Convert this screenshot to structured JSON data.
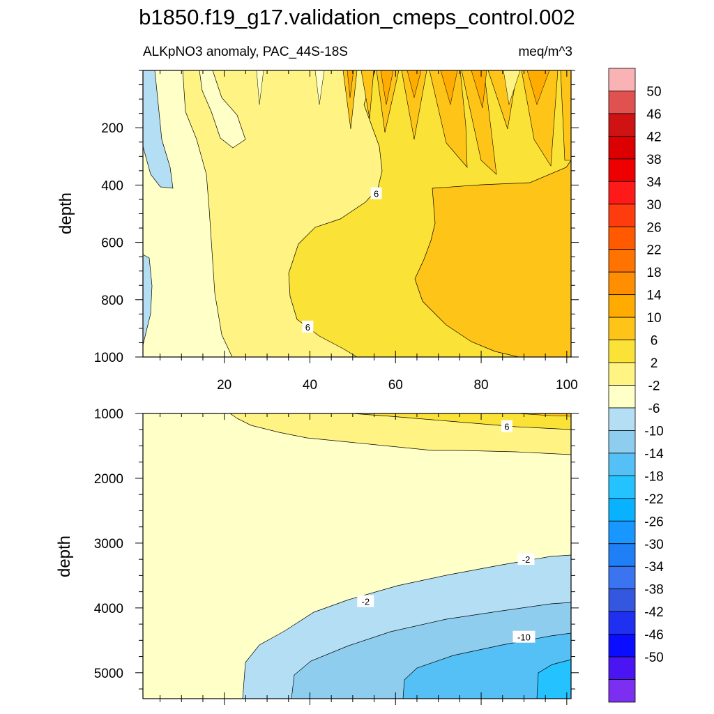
{
  "title": "b1850.f19_g17.validation_cmeps_control.002",
  "subtitle_left": "ALKpNO3 anomaly, PAC_44S-18S",
  "subtitle_right": "meq/m^3",
  "chart_data": [
    {
      "type": "heatmap",
      "name": "upper-panel",
      "ylabel": "depth",
      "xlim": [
        1,
        101
      ],
      "ylim": [
        1000,
        0
      ],
      "x_ticks": [
        "20",
        "40",
        "60",
        "80",
        "100"
      ],
      "y_ticks": [
        "200",
        "400",
        "600",
        "800",
        "1000"
      ],
      "contour_labels": [
        {
          "text": "6",
          "x": 55.5,
          "y": 430
        },
        {
          "text": "6",
          "x": 39.5,
          "y": 895
        }
      ]
    },
    {
      "type": "heatmap",
      "name": "lower-panel",
      "ylabel": "depth",
      "xlim": [
        1,
        101
      ],
      "ylim": [
        5400,
        1000
      ],
      "x_ticks": [],
      "y_ticks": [
        "1000",
        "2000",
        "3000",
        "4000",
        "5000"
      ],
      "contour_labels": [
        {
          "text": "6",
          "x": 86,
          "y": 1200
        },
        {
          "text": "-2",
          "x": 90.5,
          "y": 3250
        },
        {
          "text": "-2",
          "x": 53,
          "y": 3900
        },
        {
          "text": "-10",
          "x": 90,
          "y": 4450
        }
      ]
    }
  ],
  "colorbar": {
    "labels": [
      "50",
      "46",
      "42",
      "38",
      "34",
      "30",
      "26",
      "22",
      "18",
      "14",
      "10",
      "6",
      "2",
      "-2",
      "-6",
      "-10",
      "-14",
      "-18",
      "-22",
      "-26",
      "-30",
      "-34",
      "-38",
      "-42",
      "-46",
      "-50"
    ],
    "colors": [
      "#f9b3b4",
      "#e0524f",
      "#cf1212",
      "#dc0000",
      "#ee0000",
      "#ff1a1a",
      "#fe3c0d",
      "#ff5a00",
      "#ff7300",
      "#ff8f00",
      "#ffab00",
      "#ffc418",
      "#fbe236",
      "#fef383",
      "#ffffc8",
      "#b3def3",
      "#8ecdee",
      "#54c0f5",
      "#24c3ff",
      "#08b2ff",
      "#1797ff",
      "#1f7ff6",
      "#3b74f0",
      "#3457e0",
      "#1f30f0",
      "#0a0dff",
      "#4b14f2",
      "#7c2ff0"
    ]
  },
  "colors": {
    "c_lt_neg2": "#b3def3",
    "c_lt_neg6": "#8ecdee",
    "c_lt_neg10": "#54c0f5",
    "c_lt_neg14": "#24c3ff",
    "c_0": "#ffffc8",
    "c_2": "#fef383",
    "c_6": "#fbe236",
    "c_10": "#ffc418",
    "c_14": "#ffab00"
  }
}
